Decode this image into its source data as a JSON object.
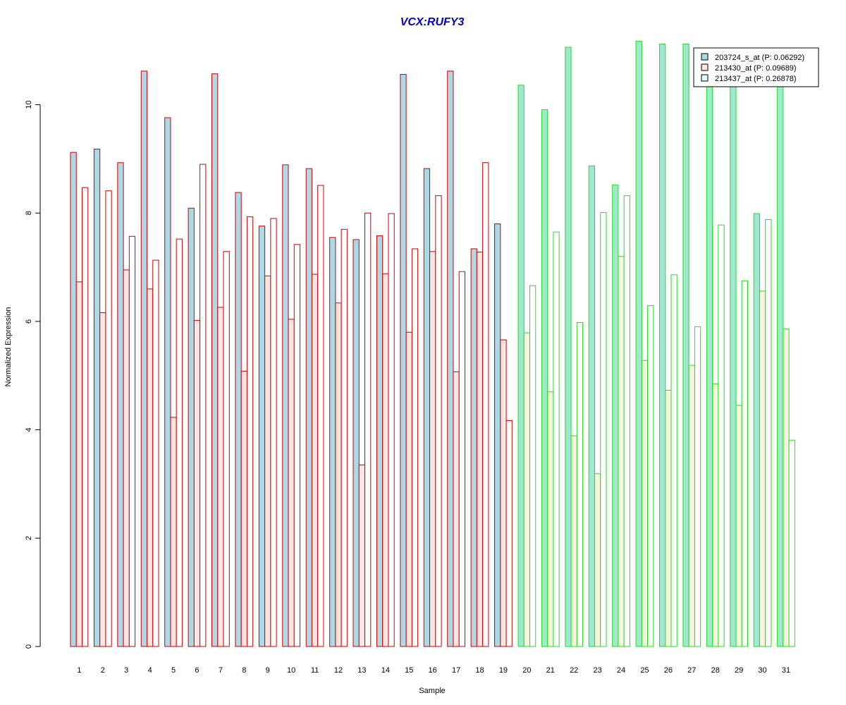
{
  "colors": {
    "title": "#0000cc",
    "group1_border": "#cc0000",
    "group2_border": "#22dd22",
    "group1_fills": [
      "#add8e6",
      "#ffe4e1",
      "#ffffff"
    ],
    "group2_fills": [
      "#a0e8d0",
      "#f5f5dc",
      "#ffffff"
    ],
    "legend_fills": [
      "#add8e6",
      "#ffe4e1",
      "#e0ffff"
    ]
  },
  "chart_data": {
    "type": "bar",
    "title": "VCX:RUFY3",
    "xlabel": "Sample",
    "ylabel": "Normalized Expression",
    "ylim": [
      0,
      11.2
    ],
    "yticks": [
      "0",
      "2",
      "4",
      "6",
      "8",
      "10"
    ],
    "grid": false,
    "legend_position": "top-right",
    "categories": [
      "1",
      "2",
      "3",
      "4",
      "5",
      "6",
      "7",
      "8",
      "9",
      "10",
      "11",
      "12",
      "13",
      "14",
      "15",
      "16",
      "17",
      "18",
      "19",
      "20",
      "21",
      "22",
      "23",
      "24",
      "25",
      "26",
      "27",
      "28",
      "29",
      "30",
      "31"
    ],
    "group_split_after": 19,
    "series": [
      {
        "name": "203724_s_at (P: 0.06292)",
        "values": [
          9.12,
          9.18,
          8.93,
          10.62,
          9.76,
          8.09,
          10.57,
          8.38,
          7.76,
          8.89,
          8.82,
          7.55,
          7.51,
          7.58,
          10.56,
          8.82,
          10.62,
          7.34,
          7.8,
          10.36,
          9.91,
          11.06,
          8.87,
          8.52,
          11.17,
          11.12,
          11.12,
          10.4,
          10.4,
          7.99,
          10.4
        ]
      },
      {
        "name": "213430_at (P: 0.09689)",
        "values": [
          6.73,
          6.16,
          6.95,
          6.6,
          4.23,
          6.02,
          6.26,
          5.08,
          6.84,
          6.04,
          6.87,
          6.34,
          3.35,
          6.88,
          5.8,
          7.29,
          5.07,
          7.28,
          5.66,
          5.79,
          4.7,
          3.89,
          3.19,
          7.2,
          5.28,
          4.73,
          5.19,
          4.85,
          4.45,
          6.56,
          5.86
        ]
      },
      {
        "name": "213437_at (P: 0.26878)",
        "values": [
          8.47,
          8.41,
          7.57,
          7.13,
          7.52,
          8.9,
          7.29,
          7.93,
          7.9,
          7.42,
          8.51,
          7.7,
          8.0,
          7.99,
          7.34,
          8.32,
          6.92,
          8.93,
          4.17,
          6.66,
          7.65,
          5.98,
          8.01,
          8.32,
          6.29,
          6.86,
          5.9,
          7.78,
          6.75,
          7.88,
          3.81
        ]
      }
    ]
  }
}
